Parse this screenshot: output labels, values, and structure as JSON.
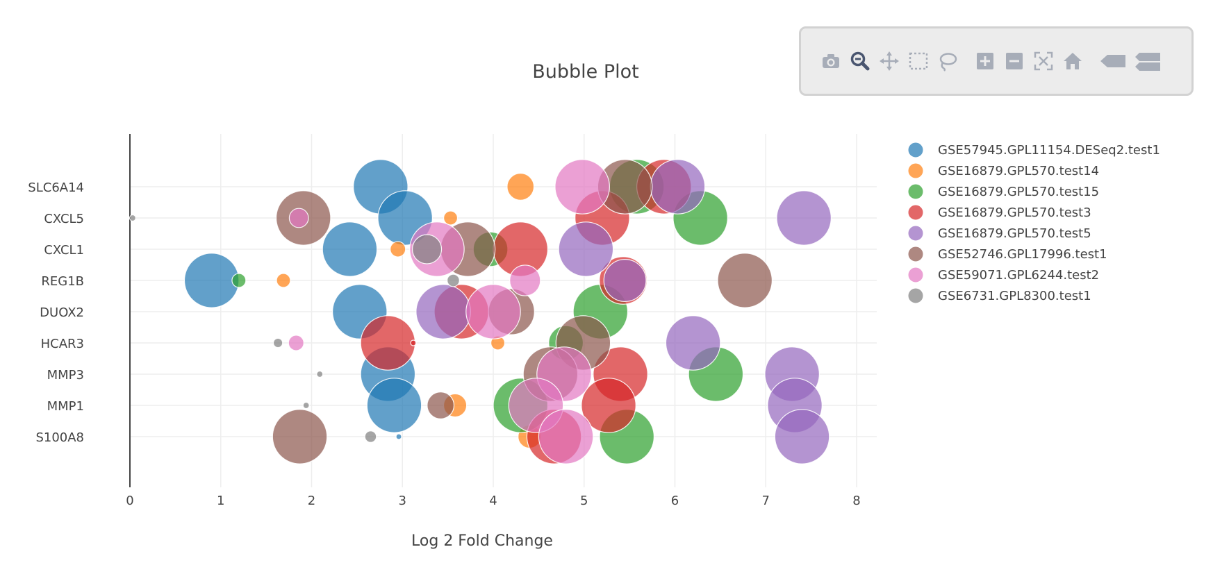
{
  "toolbar": {
    "buttons": [
      {
        "name": "camera-icon",
        "title": "Download plot as a png"
      },
      {
        "name": "zoom-icon",
        "title": "Zoom"
      },
      {
        "name": "pan-icon",
        "title": "Pan"
      },
      {
        "name": "box-select-icon",
        "title": "Box Select"
      },
      {
        "name": "lasso-select-icon",
        "title": "Lasso Select"
      },
      {
        "name": "zoom-in-icon",
        "title": "Zoom in"
      },
      {
        "name": "zoom-out-icon",
        "title": "Zoom out"
      },
      {
        "name": "autoscale-icon",
        "title": "Autoscale"
      },
      {
        "name": "reset-axes-icon",
        "title": "Reset axes"
      },
      {
        "name": "hover-closest-icon",
        "title": "Show closest data on hover"
      },
      {
        "name": "hover-compare-icon",
        "title": "Compare data on hover"
      }
    ],
    "active": "zoom-icon"
  },
  "chart_data": {
    "type": "scatter",
    "title": "Bubble Plot",
    "xlabel": "Log 2 Fold Change",
    "ylabel": "",
    "xlim": [
      0,
      8.2
    ],
    "xticks": [
      0,
      1,
      2,
      3,
      4,
      5,
      6,
      7,
      8
    ],
    "categories": [
      "SLC6A14",
      "CXCL5",
      "CXCL1",
      "REG1B",
      "DUOX2",
      "HCAR3",
      "MMP3",
      "MMP1",
      "S100A8"
    ],
    "grid": true,
    "legend_position": "right",
    "series": [
      {
        "name": "GSE57945.GPL11154.DESeq2.test1",
        "color": "#1f77b4",
        "points": [
          {
            "x": 2.76,
            "y": "SLC6A14",
            "size": 0.71
          },
          {
            "x": 3.03,
            "y": "CXCL5",
            "size": 0.71
          },
          {
            "x": 2.42,
            "y": "CXCL1",
            "size": 0.71
          },
          {
            "x": 0.9,
            "y": "REG1B",
            "size": 0.71
          },
          {
            "x": 2.53,
            "y": "DUOX2",
            "size": 0.71
          },
          {
            "x": 2.84,
            "y": "MMP3",
            "size": 0.71
          },
          {
            "x": 2.91,
            "y": "MMP1",
            "size": 0.71
          },
          {
            "x": 2.96,
            "y": "S100A8",
            "size": 0.05
          }
        ]
      },
      {
        "name": "GSE16879.GPL570.test14",
        "color": "#ff7f0e",
        "points": [
          {
            "x": 4.3,
            "y": "SLC6A14",
            "size": 0.35
          },
          {
            "x": 3.53,
            "y": "CXCL5",
            "size": 0.18
          },
          {
            "x": 2.95,
            "y": "CXCL1",
            "size": 0.2
          },
          {
            "x": 1.69,
            "y": "REG1B",
            "size": 0.18
          },
          {
            "x": 4.05,
            "y": "HCAR3",
            "size": 0.18
          },
          {
            "x": 3.58,
            "y": "MMP1",
            "size": 0.3
          },
          {
            "x": 4.4,
            "y": "S100A8",
            "size": 0.3
          }
        ]
      },
      {
        "name": "GSE16879.GPL570.test15",
        "color": "#2ca02c",
        "points": [
          {
            "x": 5.58,
            "y": "SLC6A14",
            "size": 0.71
          },
          {
            "x": 6.28,
            "y": "CXCL5",
            "size": 0.71
          },
          {
            "x": 3.97,
            "y": "CXCL1",
            "size": 0.45
          },
          {
            "x": 1.2,
            "y": "REG1B",
            "size": 0.18
          },
          {
            "x": 5.18,
            "y": "DUOX2",
            "size": 0.71
          },
          {
            "x": 4.8,
            "y": "HCAR3",
            "size": 0.45
          },
          {
            "x": 6.45,
            "y": "MMP3",
            "size": 0.71
          },
          {
            "x": 4.3,
            "y": "MMP1",
            "size": 0.71
          },
          {
            "x": 5.47,
            "y": "S100A8",
            "size": 0.71
          }
        ]
      },
      {
        "name": "GSE16879.GPL570.test3",
        "color": "#d62728",
        "points": [
          {
            "x": 5.88,
            "y": "SLC6A14",
            "size": 0.71
          },
          {
            "x": 5.2,
            "y": "CXCL5",
            "size": 0.71
          },
          {
            "x": 4.3,
            "y": "CXCL1",
            "size": 0.71
          },
          {
            "x": 5.43,
            "y": "REG1B",
            "size": 0.62
          },
          {
            "x": 3.65,
            "y": "DUOX2",
            "size": 0.71
          },
          {
            "x": 2.84,
            "y": "HCAR3",
            "size": 0.71
          },
          {
            "x": 3.12,
            "y": "HCAR3",
            "size": 0.06
          },
          {
            "x": 5.4,
            "y": "MMP3",
            "size": 0.71
          },
          {
            "x": 5.27,
            "y": "MMP1",
            "size": 0.71
          },
          {
            "x": 4.67,
            "y": "S100A8",
            "size": 0.71
          }
        ]
      },
      {
        "name": "GSE16879.GPL570.test5",
        "color": "#9467bd",
        "points": [
          {
            "x": 6.03,
            "y": "SLC6A14",
            "size": 0.71
          },
          {
            "x": 7.42,
            "y": "CXCL5",
            "size": 0.71
          },
          {
            "x": 5.02,
            "y": "CXCL1",
            "size": 0.71
          },
          {
            "x": 5.45,
            "y": "REG1B",
            "size": 0.55
          },
          {
            "x": 3.45,
            "y": "DUOX2",
            "size": 0.71
          },
          {
            "x": 6.2,
            "y": "HCAR3",
            "size": 0.71
          },
          {
            "x": 7.29,
            "y": "MMP3",
            "size": 0.71
          },
          {
            "x": 7.32,
            "y": "MMP1",
            "size": 0.71
          },
          {
            "x": 7.4,
            "y": "S100A8",
            "size": 0.71
          }
        ]
      },
      {
        "name": "GSE52746.GPL17996.test1",
        "color": "#8c564b",
        "points": [
          {
            "x": 5.45,
            "y": "SLC6A14",
            "size": 0.71
          },
          {
            "x": 1.91,
            "y": "CXCL5",
            "size": 0.71
          },
          {
            "x": 3.72,
            "y": "CXCL1",
            "size": 0.71
          },
          {
            "x": 6.77,
            "y": "REG1B",
            "size": 0.71
          },
          {
            "x": 4.2,
            "y": "DUOX2",
            "size": 0.6
          },
          {
            "x": 4.99,
            "y": "HCAR3",
            "size": 0.71
          },
          {
            "x": 4.63,
            "y": "MMP3",
            "size": 0.71
          },
          {
            "x": 3.42,
            "y": "MMP1",
            "size": 0.35
          },
          {
            "x": 1.87,
            "y": "S100A8",
            "size": 0.71
          }
        ]
      },
      {
        "name": "GSE59071.GPL6244.test2",
        "color": "#e377c2",
        "points": [
          {
            "x": 4.98,
            "y": "SLC6A14",
            "size": 0.71
          },
          {
            "x": 1.86,
            "y": "CXCL5",
            "size": 0.25
          },
          {
            "x": 3.38,
            "y": "CXCL1",
            "size": 0.71
          },
          {
            "x": 4.35,
            "y": "REG1B",
            "size": 0.4
          },
          {
            "x": 4.0,
            "y": "DUOX2",
            "size": 0.71
          },
          {
            "x": 1.83,
            "y": "HCAR3",
            "size": 0.2
          },
          {
            "x": 4.78,
            "y": "MMP3",
            "size": 0.71
          },
          {
            "x": 4.47,
            "y": "MMP1",
            "size": 0.71
          },
          {
            "x": 4.8,
            "y": "S100A8",
            "size": 0.71
          }
        ]
      },
      {
        "name": "GSE6731.GPL8300.test1",
        "color": "#7f7f7f",
        "points": [
          {
            "x": 0.03,
            "y": "CXCL5",
            "size": 0.08
          },
          {
            "x": 3.27,
            "y": "CXCL1",
            "size": 0.38
          },
          {
            "x": 3.56,
            "y": "REG1B",
            "size": 0.16
          },
          {
            "x": 1.63,
            "y": "HCAR3",
            "size": 0.12
          },
          {
            "x": 2.09,
            "y": "MMP3",
            "size": 0.08
          },
          {
            "x": 1.94,
            "y": "MMP1",
            "size": 0.08
          },
          {
            "x": 2.65,
            "y": "S100A8",
            "size": 0.15
          }
        ]
      }
    ]
  }
}
